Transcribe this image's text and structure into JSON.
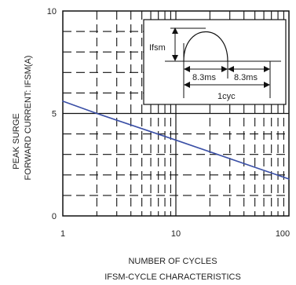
{
  "chart_data": {
    "type": "line",
    "title": "IFSM-CYCLE CHARACTERISTICS",
    "xlabel": "NUMBER OF CYCLES",
    "ylabel_line1": "PEAK SURGE",
    "ylabel_line2": "FORWARD CURRENT: IFSM(A)",
    "x_scale": "log",
    "xlim": [
      1,
      100
    ],
    "ylim": [
      0,
      10
    ],
    "x_ticks": [
      "1",
      "10",
      "100"
    ],
    "y_ticks": [
      "0",
      "5",
      "10"
    ],
    "grid": true,
    "series": [
      {
        "x": [
          1,
          2,
          10,
          100
        ],
        "y": [
          5.6,
          5.0,
          3.7,
          1.8
        ]
      }
    ],
    "colors": {
      "series": "#3a4fa6",
      "grid": "#111111",
      "axis": "#111111"
    },
    "inset": {
      "peak_label": "Ifsm",
      "half_cycle_label_1": "8.3ms",
      "half_cycle_label_2": "8.3ms",
      "cycle_label": "1cyc"
    }
  }
}
